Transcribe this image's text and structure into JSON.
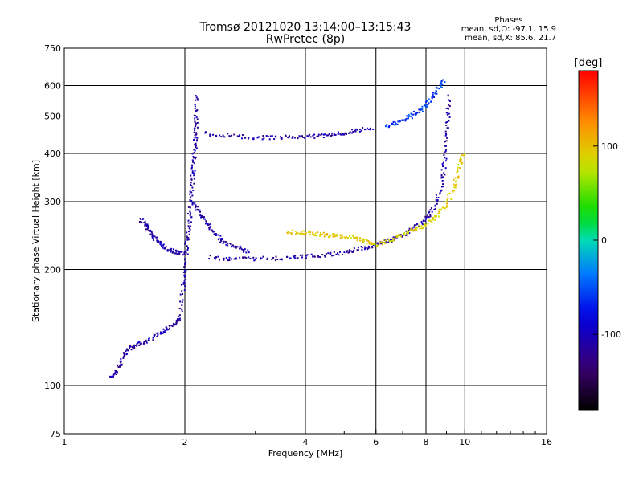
{
  "header": {
    "title_line1": "Tromsø 20121020 13:14:00–13:15:43",
    "title_line2": "RwPretec (8p)"
  },
  "phases": {
    "heading": "Phases",
    "line_o": "mean, sd,O: -97.1, 15.9",
    "line_x": "mean, sd,X:  85.6, 21.7"
  },
  "chart_data": {
    "type": "scatter",
    "xlabel": "Frequency [MHz]",
    "ylabel": "Stationary phase Virtual Height [km]",
    "xscale": "log",
    "yscale": "log",
    "xlim": [
      1,
      16
    ],
    "ylim": [
      75,
      750
    ],
    "xticks": [
      1,
      2,
      4,
      6,
      8,
      10,
      16
    ],
    "yticks": [
      75,
      100,
      200,
      300,
      400,
      500,
      600,
      750
    ],
    "vgrid": [
      2,
      4,
      6,
      8,
      10
    ],
    "hgrid": [
      100,
      200,
      300,
      400,
      500,
      600
    ],
    "colorbar": {
      "label": "[deg]",
      "min": -180,
      "max": 180,
      "ticks": [
        -100,
        0,
        100
      ]
    },
    "traces": [
      {
        "name": "o-trace-main",
        "phase": -110,
        "points": [
          [
            2.32,
            215
          ],
          [
            2.6,
            213
          ],
          [
            3.0,
            213
          ],
          [
            3.5,
            214
          ],
          [
            4.0,
            216
          ],
          [
            4.5,
            218
          ],
          [
            5.0,
            221
          ],
          [
            5.5,
            226
          ],
          [
            6.0,
            232
          ],
          [
            6.5,
            238
          ],
          [
            7.0,
            246
          ],
          [
            7.5,
            256
          ],
          [
            8.0,
            270
          ],
          [
            8.4,
            292
          ],
          [
            8.7,
            325
          ],
          [
            8.9,
            375
          ],
          [
            9.0,
            430
          ],
          [
            9.1,
            500
          ],
          [
            9.1,
            570
          ]
        ]
      },
      {
        "name": "x-trace-upper",
        "phase": 90,
        "points": [
          [
            6.0,
            232
          ],
          [
            6.5,
            238
          ],
          [
            7.0,
            246
          ],
          [
            7.5,
            254
          ],
          [
            8.0,
            262
          ],
          [
            8.5,
            274
          ],
          [
            9.0,
            296
          ],
          [
            9.4,
            330
          ],
          [
            9.7,
            370
          ],
          [
            9.9,
            400
          ]
        ]
      },
      {
        "name": "x-trace-mid",
        "phase": 95,
        "points": [
          [
            3.6,
            250
          ],
          [
            3.9,
            250
          ],
          [
            4.2,
            248
          ],
          [
            4.5,
            246
          ],
          [
            4.8,
            244
          ],
          [
            5.2,
            242
          ],
          [
            5.6,
            238
          ],
          [
            5.9,
            234
          ]
        ]
      },
      {
        "name": "f2-upper-band",
        "phase": -110,
        "points": [
          [
            2.25,
            450
          ],
          [
            2.6,
            445
          ],
          [
            3.0,
            440
          ],
          [
            3.4,
            440
          ],
          [
            3.8,
            441
          ],
          [
            4.2,
            443
          ],
          [
            4.6,
            446
          ],
          [
            5.0,
            452
          ],
          [
            5.4,
            460
          ],
          [
            5.9,
            468
          ]
        ]
      },
      {
        "name": "upper-right-cusp",
        "phase": -60,
        "points": [
          [
            6.3,
            470
          ],
          [
            6.8,
            480
          ],
          [
            7.2,
            495
          ],
          [
            7.6,
            510
          ],
          [
            8.0,
            530
          ],
          [
            8.3,
            560
          ],
          [
            8.6,
            590
          ],
          [
            8.9,
            620
          ]
        ]
      },
      {
        "name": "spread-column",
        "phase": -110,
        "points": [
          [
            1.95,
            150
          ],
          [
            1.98,
            180
          ],
          [
            2.0,
            200
          ],
          [
            2.02,
            230
          ],
          [
            2.05,
            260
          ],
          [
            2.07,
            300
          ],
          [
            2.09,
            340
          ],
          [
            2.1,
            380
          ],
          [
            2.12,
            420
          ],
          [
            2.13,
            460
          ],
          [
            2.13,
            500
          ],
          [
            2.14,
            570
          ]
        ]
      },
      {
        "name": "low-branch",
        "phase": -110,
        "points": [
          [
            1.3,
            105
          ],
          [
            1.35,
            108
          ],
          [
            1.4,
            118
          ],
          [
            1.45,
            125
          ],
          [
            1.52,
            128
          ],
          [
            1.6,
            130
          ],
          [
            1.7,
            135
          ],
          [
            1.8,
            140
          ],
          [
            1.9,
            145
          ],
          [
            1.95,
            150
          ]
        ]
      },
      {
        "name": "left-arc",
        "phase": -110,
        "points": [
          [
            1.55,
            270
          ],
          [
            1.6,
            260
          ],
          [
            1.65,
            248
          ],
          [
            1.72,
            235
          ],
          [
            1.8,
            226
          ],
          [
            1.9,
            222
          ],
          [
            2.0,
            220
          ]
        ]
      },
      {
        "name": "shoulder",
        "phase": -110,
        "points": [
          [
            2.1,
            300
          ],
          [
            2.2,
            275
          ],
          [
            2.3,
            258
          ],
          [
            2.4,
            245
          ],
          [
            2.5,
            235
          ],
          [
            2.7,
            228
          ],
          [
            2.9,
            222
          ]
        ]
      }
    ]
  }
}
